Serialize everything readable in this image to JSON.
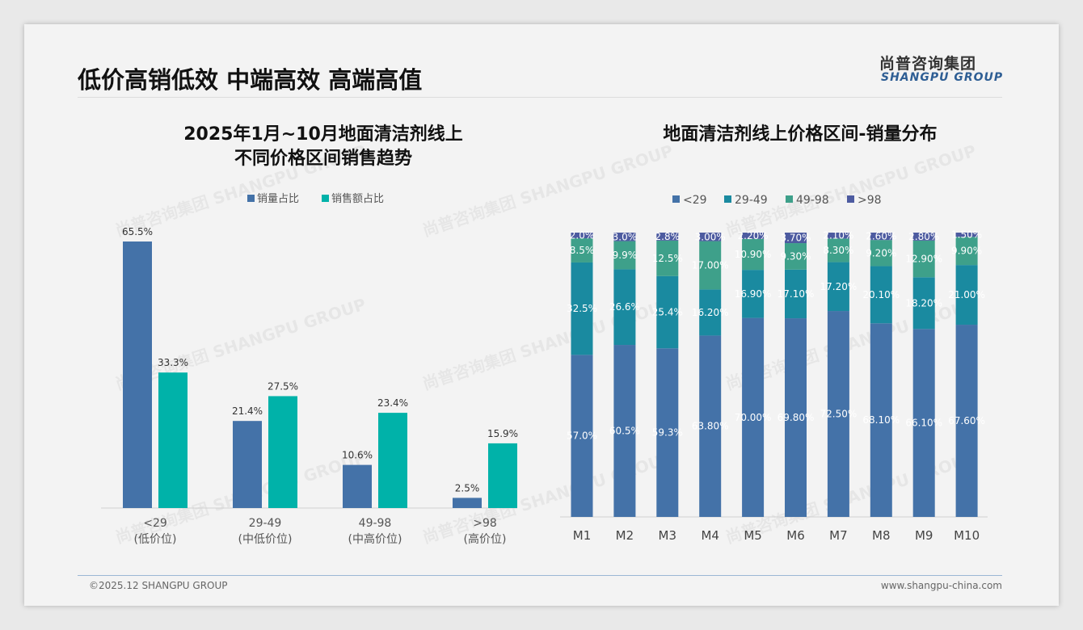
{
  "header": {
    "title": "低价高销低效 中端高效 高端高值",
    "logo_cn": "尚普咨询集团",
    "logo_en": "SHANGPU GROUP"
  },
  "footer": {
    "copyright": "©2025.12 SHANGPU GROUP",
    "website": "www.shangpu-china.com"
  },
  "watermark": "尚普咨询集团 SHANGPU GROUP",
  "colors": {
    "volume": "#4472a8",
    "sales": "#00b2a9",
    "s1": "#4472a8",
    "s2": "#1a8aa0",
    "s3": "#3ea08a",
    "s4": "#4d5ba0"
  },
  "chart_data": [
    {
      "type": "bar",
      "title_line1": "2025年1月~10月地面清洁剂线上",
      "title_line2": "不同价格区间销售趋势",
      "categories": [
        "<29",
        "29-49",
        "49-98",
        ">98"
      ],
      "sublabels": [
        "(低价位)",
        "(中低价位)",
        "(中高价位)",
        "(高价位)"
      ],
      "series": [
        {
          "name": "销量占比",
          "values": [
            65.5,
            21.4,
            10.6,
            2.5
          ],
          "labels": [
            "65.5%",
            "21.4%",
            "10.6%",
            "2.5%"
          ]
        },
        {
          "name": "销售额占比",
          "values": [
            33.3,
            27.5,
            23.4,
            15.9
          ],
          "labels": [
            "33.3%",
            "27.5%",
            "23.4%",
            "15.9%"
          ]
        }
      ],
      "legend": "top",
      "ylim": [
        0,
        70
      ]
    },
    {
      "type": "bar",
      "stacked": true,
      "title": "地面清洁剂线上价格区间-销量分布",
      "categories": [
        "M1",
        "M2",
        "M3",
        "M4",
        "M5",
        "M6",
        "M7",
        "M8",
        "M9",
        "M10"
      ],
      "series": [
        {
          "name": "<29",
          "values": [
            57.0,
            60.5,
            59.3,
            63.8,
            70.0,
            69.8,
            72.5,
            68.1,
            66.1,
            67.6
          ],
          "labels": [
            "57.0%",
            "60.5%",
            "59.3%",
            "63.80%",
            "70.00%",
            "69.80%",
            "72.50%",
            "68.10%",
            "66.10%",
            "67.60%"
          ]
        },
        {
          "name": "29-49",
          "values": [
            32.5,
            26.6,
            25.4,
            16.2,
            16.9,
            17.1,
            17.2,
            20.1,
            18.2,
            21.0
          ],
          "labels": [
            "32.5%",
            "26.6%",
            "25.4%",
            "16.20%",
            "16.90%",
            "17.10%",
            "17.20%",
            "20.10%",
            "18.20%",
            "21.00%"
          ]
        },
        {
          "name": "49-98",
          "values": [
            8.5,
            9.9,
            12.5,
            17.0,
            10.9,
            9.3,
            8.3,
            9.2,
            12.9,
            9.9
          ],
          "labels": [
            "8.5%",
            "9.9%",
            "12.5%",
            "17.00%",
            "10.90%",
            "9.30%",
            "8.30%",
            "9.20%",
            "12.90%",
            "9.90%"
          ]
        },
        {
          "name": ">98",
          "values": [
            2.0,
            3.0,
            2.8,
            3.0,
            2.2,
            3.7,
            2.1,
            2.6,
            2.8,
            1.5
          ],
          "labels": [
            "2.0%",
            "3.0%",
            "2.8%",
            "3.00%",
            "2.20%",
            "3.70%",
            "2.10%",
            "2.60%",
            "2.80%",
            "1.50%"
          ]
        }
      ],
      "legend": "top",
      "ylim": [
        0,
        100
      ]
    }
  ]
}
